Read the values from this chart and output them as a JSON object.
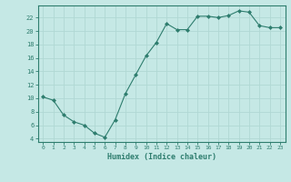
{
  "x": [
    0,
    1,
    2,
    3,
    4,
    5,
    6,
    7,
    8,
    9,
    10,
    11,
    12,
    13,
    14,
    15,
    16,
    17,
    18,
    19,
    20,
    21,
    22,
    23
  ],
  "y": [
    10.2,
    9.7,
    7.5,
    6.5,
    6.0,
    4.8,
    4.2,
    6.8,
    10.7,
    13.5,
    16.3,
    18.3,
    21.1,
    20.2,
    20.2,
    22.2,
    22.2,
    22.0,
    22.3,
    23.0,
    22.8,
    20.8,
    20.5,
    20.5
  ],
  "line_color": "#2e7d6e",
  "marker": "D",
  "marker_size": 2.0,
  "bg_color": "#c5e8e5",
  "grid_color": "#b0d8d4",
  "xlabel": "Humidex (Indice chaleur)",
  "ylim": [
    3.5,
    23.8
  ],
  "yticks": [
    4,
    6,
    8,
    10,
    12,
    14,
    16,
    18,
    20,
    22
  ],
  "xlim": [
    -0.5,
    23.5
  ],
  "xticks": [
    0,
    1,
    2,
    3,
    4,
    5,
    6,
    7,
    8,
    9,
    10,
    11,
    12,
    13,
    14,
    15,
    16,
    17,
    18,
    19,
    20,
    21,
    22,
    23
  ]
}
